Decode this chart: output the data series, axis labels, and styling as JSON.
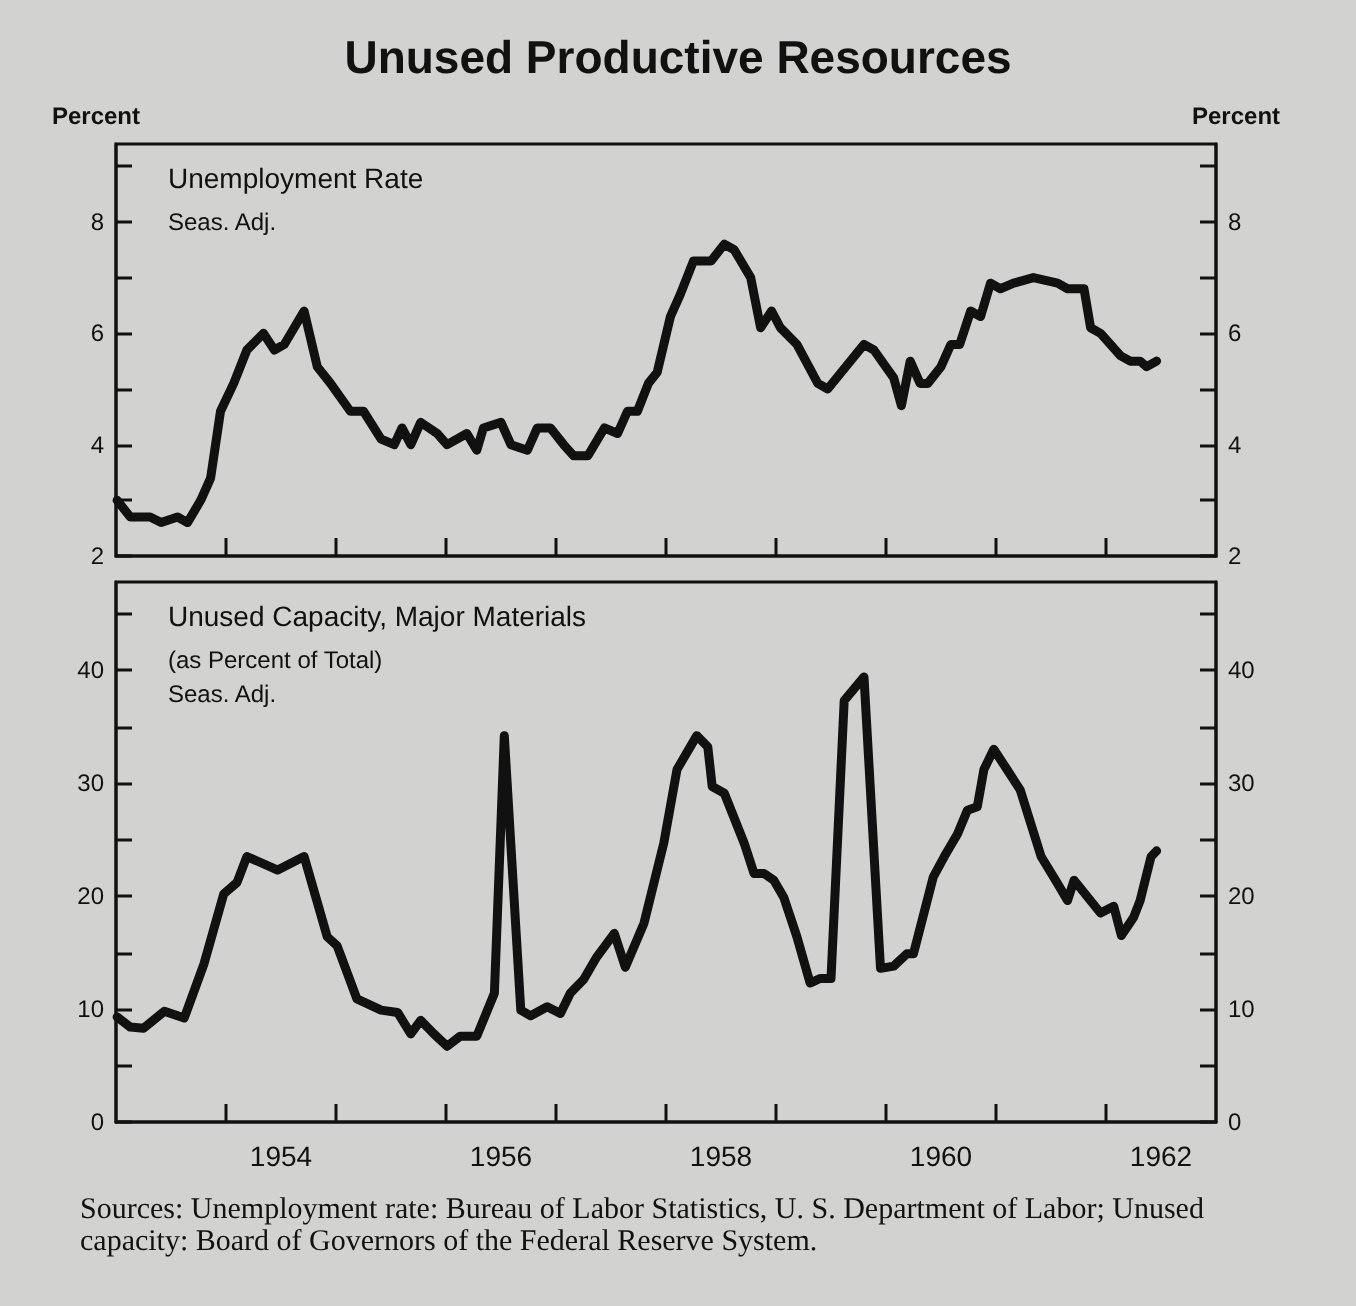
{
  "chart_data": [
    {
      "type": "line",
      "title": "Unused Productive Resources",
      "ylabel": "Percent",
      "y2label": "Percent",
      "annotations": [
        "Unemployment Rate",
        "Seas. Adj."
      ],
      "x": [
        1953.01,
        1953.13,
        1953.31,
        1953.41,
        1953.56,
        1953.65,
        1953.77,
        1953.86,
        1953.95,
        1954.07,
        1954.19,
        1954.34,
        1954.44,
        1954.53,
        1954.71,
        1954.83,
        1954.95,
        1955.13,
        1955.25,
        1955.41,
        1955.53,
        1955.6,
        1955.68,
        1955.77,
        1955.92,
        1956.01,
        1956.19,
        1956.28,
        1956.34,
        1956.5,
        1956.59,
        1956.74,
        1956.83,
        1956.95,
        1957.07,
        1957.16,
        1957.29,
        1957.44,
        1957.56,
        1957.65,
        1957.74,
        1957.84,
        1957.92,
        1958.04,
        1958.13,
        1958.25,
        1958.41,
        1958.53,
        1958.62,
        1958.77,
        1958.86,
        1958.96,
        1959.04,
        1959.19,
        1959.38,
        1959.47,
        1959.8,
        1959.89,
        1960.07,
        1960.14,
        1960.22,
        1960.31,
        1960.38,
        1960.5,
        1960.59,
        1960.67,
        1960.77,
        1960.86,
        1960.95,
        1961.04,
        1961.16,
        1961.34,
        1961.56,
        1961.65,
        1961.8,
        1961.86,
        1961.95,
        1962.13,
        1962.22,
        1962.31,
        1962.37,
        1962.46
      ],
      "series": [
        {
          "color": "#111111",
          "values": [
            3.0,
            2.7,
            2.7,
            2.6,
            2.7,
            2.6,
            3.0,
            3.4,
            4.6,
            5.1,
            5.7,
            6.0,
            5.7,
            5.8,
            6.4,
            5.4,
            5.1,
            4.6,
            4.6,
            4.1,
            4.0,
            4.3,
            4.0,
            4.4,
            4.2,
            4.0,
            4.2,
            3.9,
            4.3,
            4.4,
            4.0,
            3.9,
            4.3,
            4.3,
            4.0,
            3.8,
            3.8,
            4.3,
            4.2,
            4.6,
            4.6,
            5.1,
            5.3,
            6.3,
            6.7,
            7.3,
            7.3,
            7.6,
            7.5,
            7.0,
            6.1,
            6.4,
            6.1,
            5.8,
            5.1,
            5.0,
            5.8,
            5.7,
            5.2,
            4.7,
            5.5,
            5.1,
            5.1,
            5.4,
            5.8,
            5.8,
            6.4,
            6.3,
            6.9,
            6.8,
            6.9,
            7.0,
            6.9,
            6.8,
            6.8,
            6.1,
            6.0,
            5.6,
            5.5,
            5.5,
            5.4,
            5.5
          ]
        }
      ],
      "xlim": [
        1953,
        1963
      ],
      "xticks": [
        {
          "value": 1954,
          "label": null
        },
        {
          "value": 1955,
          "label": null
        },
        {
          "value": 1956,
          "label": null
        },
        {
          "value": 1957,
          "label": null
        },
        {
          "value": 1958,
          "label": null
        },
        {
          "value": 1959,
          "label": null
        },
        {
          "value": 1960,
          "label": null
        },
        {
          "value": 1961,
          "label": null
        },
        {
          "value": 1962,
          "label": null
        }
      ],
      "ylim": [
        2,
        9.4
      ],
      "yticks": [
        2,
        {
          "value": 3,
          "label": null
        },
        4,
        {
          "value": 5,
          "label": null
        },
        6,
        {
          "value": 7,
          "label": null
        },
        8,
        {
          "value": 9,
          "label": null
        }
      ],
      "y2lim": [
        2,
        9.4
      ],
      "y2ticks": [
        2,
        {
          "value": 3,
          "label": null
        },
        4,
        {
          "value": 5,
          "label": null
        },
        6,
        {
          "value": 7,
          "label": null
        },
        8,
        {
          "value": 9,
          "label": null
        }
      ],
      "tick_labels": "y",
      "marker": "none",
      "line_style": "solid"
    },
    {
      "type": "line",
      "annotations": [
        "Unused Capacity, Major Materials",
        "(as Percent of Total)",
        "Seas. Adj.",
        "Sources: Unemployment rate: Bureau of Labor Statistics, U. S. Department of Labor; Unused capacity: Board of Governors of the Federal Reserve System."
      ],
      "x": [
        1953.01,
        1953.13,
        1953.25,
        1953.44,
        1953.62,
        1953.8,
        1953.98,
        1954.1,
        1954.19,
        1954.47,
        1954.71,
        1954.92,
        1955.01,
        1955.19,
        1955.41,
        1955.56,
        1955.68,
        1955.77,
        1955.89,
        1956.01,
        1956.13,
        1956.28,
        1956.44,
        1956.53,
        1956.68,
        1956.77,
        1956.92,
        1957.04,
        1957.13,
        1957.25,
        1957.37,
        1957.53,
        1957.63,
        1957.8,
        1957.98,
        1958.1,
        1958.28,
        1958.38,
        1958.42,
        1958.53,
        1958.71,
        1958.8,
        1958.89,
        1958.98,
        1959.07,
        1959.19,
        1959.31,
        1959.4,
        1959.5,
        1959.62,
        1959.8,
        1959.95,
        1960.07,
        1960.19,
        1960.25,
        1960.43,
        1960.53,
        1960.65,
        1960.74,
        1960.83,
        1960.89,
        1960.98,
        1961.1,
        1961.22,
        1961.41,
        1961.56,
        1961.65,
        1961.71,
        1961.95,
        1962.07,
        1962.14,
        1962.25,
        1962.31,
        1962.41,
        1962.46
      ],
      "series": [
        {
          "color": "#111111",
          "values": [
            9.3,
            8.4,
            8.3,
            9.8,
            9.2,
            14,
            20.2,
            21.2,
            23.5,
            22.3,
            23.5,
            16.4,
            15.6,
            10.9,
            9.9,
            9.7,
            7.8,
            9.0,
            7.8,
            6.7,
            7.6,
            7.6,
            11.4,
            34.2,
            9.9,
            9.4,
            10.2,
            9.6,
            11.4,
            12.6,
            14.6,
            16.7,
            13.7,
            17.6,
            24.7,
            31.2,
            34.2,
            33.2,
            29.7,
            29.1,
            24.7,
            22.0,
            22.0,
            21.4,
            19.9,
            16.4,
            12.3,
            12.7,
            12.7,
            37.3,
            39.4,
            13.6,
            13.8,
            14.9,
            14.9,
            21.7,
            23.5,
            25.5,
            27.6,
            27.9,
            31.2,
            33.0,
            31.2,
            29.4,
            23.5,
            21.1,
            19.6,
            21.4,
            18.5,
            19.1,
            16.5,
            18.1,
            19.6,
            23.5,
            24.0
          ]
        }
      ],
      "xlim": [
        1953,
        1963
      ],
      "xticks": [
        {
          "value": 1954,
          "label": null
        },
        {
          "value": 1954.5,
          "label": "1954"
        },
        {
          "value": 1955,
          "label": null
        },
        {
          "value": 1956,
          "label": null
        },
        {
          "value": 1956.5,
          "label": "1956"
        },
        {
          "value": 1957,
          "label": null
        },
        {
          "value": 1958,
          "label": null
        },
        {
          "value": 1958.5,
          "label": "1958"
        },
        {
          "value": 1959,
          "label": null
        },
        {
          "value": 1960,
          "label": null
        },
        {
          "value": 1960.5,
          "label": "1960"
        },
        {
          "value": 1961,
          "label": null
        },
        {
          "value": 1962,
          "label": null
        },
        {
          "value": 1962.5,
          "label": "1962"
        }
      ],
      "ylim": [
        0,
        47.8
      ],
      "yticks": [
        0,
        {
          "value": 5,
          "label": null
        },
        10,
        {
          "value": 15,
          "label": null
        },
        20,
        {
          "value": 25,
          "label": null
        },
        30,
        {
          "value": 35,
          "label": null
        },
        40,
        {
          "value": 45,
          "label": null
        }
      ],
      "y2lim": [
        0,
        47.8
      ],
      "y2ticks": [
        0,
        {
          "value": 5,
          "label": null
        },
        10,
        {
          "value": 15,
          "label": null
        },
        20,
        {
          "value": 25,
          "label": null
        },
        30,
        {
          "value": 35,
          "label": null
        },
        40,
        {
          "value": 45,
          "label": null
        }
      ],
      "marker": "none",
      "line_style": "solid"
    }
  ]
}
